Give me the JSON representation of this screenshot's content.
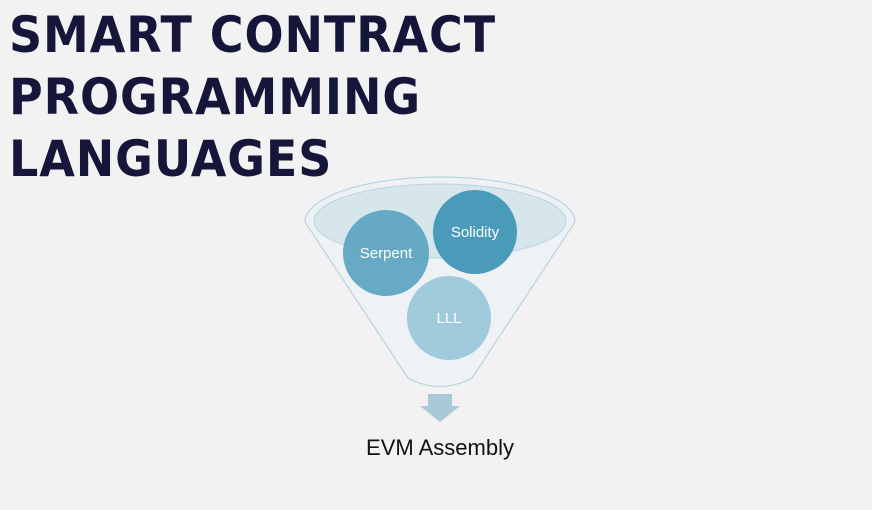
{
  "slide": {
    "title_line1": "SMART CONTRACT PROGRAMMING",
    "title_line2": "LANGUAGES"
  },
  "diagram": {
    "languages": {
      "serpent": "Serpent",
      "solidity": "Solidity",
      "lll": "LLL"
    },
    "output": "EVM Assembly",
    "colors": {
      "title": "#15163a",
      "funnel_fill": "#eef2f4",
      "funnel_stroke": "#b9d4e0",
      "funnel_top": "#d7e6eb",
      "serpent": "#5ba4c0",
      "solidity": "#4a9bb9",
      "lll": "#9fcbdd",
      "arrow": "#aac9d8"
    }
  }
}
